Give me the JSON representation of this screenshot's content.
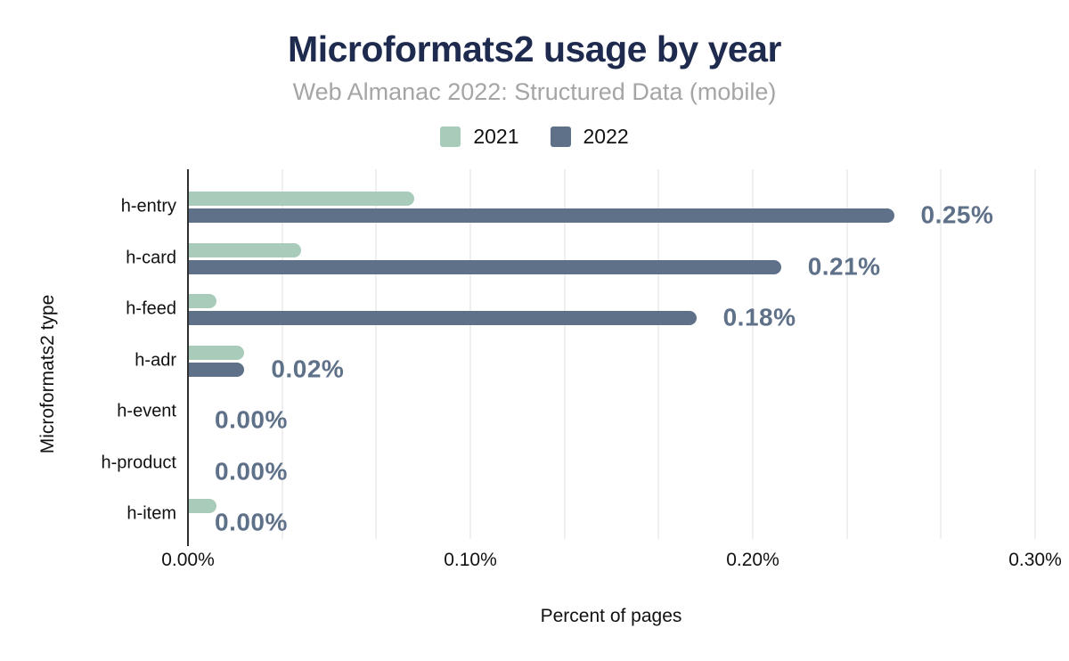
{
  "chart_data": {
    "type": "bar",
    "orientation": "horizontal",
    "title": "Microformats2 usage by year",
    "subtitle": "Web Almanac 2022: Structured Data (mobile)",
    "xlabel": "Percent of pages",
    "ylabel": "Microformats2 type",
    "categories": [
      "h-entry",
      "h-card",
      "h-feed",
      "h-adr",
      "h-event",
      "h-product",
      "h-item"
    ],
    "series": [
      {
        "name": "2021",
        "color": "#a8cbba",
        "values": [
          0.08,
          0.04,
          0.01,
          0.02,
          0.0,
          0.0,
          0.01
        ]
      },
      {
        "name": "2022",
        "color": "#5e7189",
        "values": [
          0.25,
          0.21,
          0.18,
          0.02,
          0.0,
          0.0,
          0.0
        ]
      }
    ],
    "data_labels": {
      "for_series": "2022",
      "values": [
        "0.25%",
        "0.21%",
        "0.18%",
        "0.02%",
        "0.00%",
        "0.00%",
        "0.00%"
      ],
      "color": "#5e7189"
    },
    "x_ticks": [
      {
        "label": "0.00%",
        "value": 0.0
      },
      {
        "label": "0.10%",
        "value": 0.1
      },
      {
        "label": "0.20%",
        "value": 0.2
      },
      {
        "label": "0.30%",
        "value": 0.3
      }
    ],
    "xlim": [
      0,
      0.3
    ],
    "grid": {
      "show": true,
      "minor_interval": 0.033333,
      "color": "#efefef"
    },
    "legend_position": "top",
    "colors": {
      "title": "#1e2b4f",
      "subtitle": "#a5a5a5",
      "axis_line": "#2f2f2f",
      "tick_text": "#111111",
      "background": "#ffffff"
    }
  }
}
